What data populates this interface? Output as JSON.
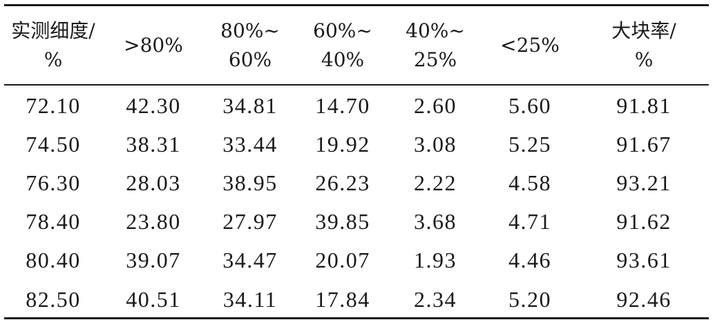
{
  "chart_data": {
    "type": "table",
    "columns": [
      [
        "实测细度/",
        "%"
      ],
      [
        ">80%"
      ],
      [
        "80%~",
        "60%"
      ],
      [
        "60%~",
        "40%"
      ],
      [
        "40%~",
        "25%"
      ],
      [
        "<25%"
      ],
      [
        "大块率/",
        "%"
      ]
    ],
    "rows": [
      [
        "72.10",
        "42.30",
        "34.81",
        "14.70",
        "2.60",
        "5.60",
        "91.81"
      ],
      [
        "74.50",
        "38.31",
        "33.44",
        "19.92",
        "3.08",
        "5.25",
        "91.67"
      ],
      [
        "76.30",
        "28.03",
        "38.95",
        "26.23",
        "2.22",
        "4.58",
        "93.21"
      ],
      [
        "78.40",
        "23.80",
        "27.97",
        "39.85",
        "3.68",
        "4.71",
        "91.62"
      ],
      [
        "80.40",
        "39.07",
        "34.47",
        "20.07",
        "1.93",
        "4.46",
        "93.61"
      ],
      [
        "82.50",
        "40.51",
        "34.11",
        "17.84",
        "2.34",
        "5.20",
        "92.46"
      ]
    ]
  }
}
